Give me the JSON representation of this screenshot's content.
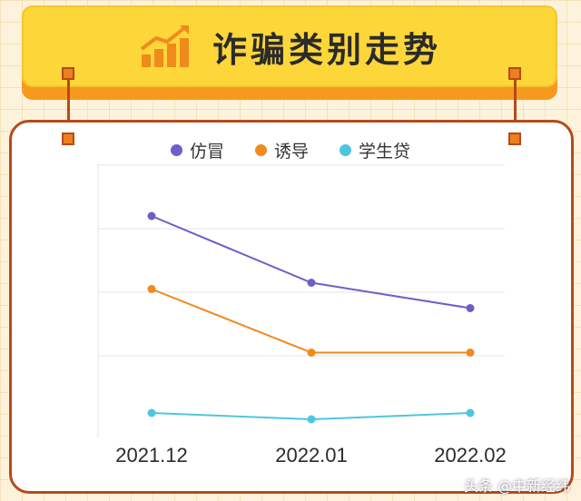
{
  "header": {
    "title": "诈骗类别走势",
    "icon": "bar-chart-trend-icon"
  },
  "colors": {
    "accent": "#fdd63a",
    "frame": "#b64a18",
    "node": "#ef7f1e"
  },
  "chart_data": {
    "type": "line",
    "title": "诈骗类别走势",
    "categories": [
      "2021.12",
      "2022.01",
      "2022.02"
    ],
    "series": [
      {
        "name": "仿冒",
        "color": "#6e5ec9",
        "values": [
          3.2,
          2.15,
          1.75
        ]
      },
      {
        "name": "诱导",
        "color": "#f08a1c",
        "values": [
          2.05,
          1.05,
          1.05
        ]
      },
      {
        "name": "学生贷",
        "color": "#4dc6e2",
        "values": [
          0.1,
          0.0,
          0.1
        ]
      }
    ],
    "ylim": [
      0,
      4
    ],
    "grid": true,
    "legend": "top-center"
  },
  "watermark": "头条 @中新经纬"
}
